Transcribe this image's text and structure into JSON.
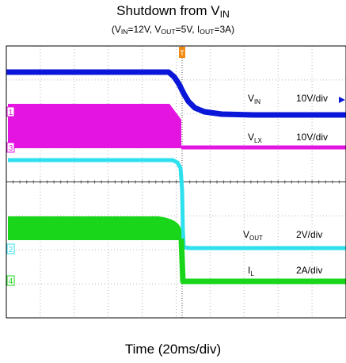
{
  "chart_data": {
    "type": "line",
    "title": "Shutdown from V",
    "title_sub": "IN",
    "subtitle": {
      "p1": "(V",
      "s1": "IN",
      "p2": "=12V, V",
      "s2": "OUT",
      "p3": "=5V, I",
      "s3": "OUT",
      "p4": "=3A)"
    },
    "xlabel": "Time (20ms/div)",
    "grid": true,
    "divisions": {
      "x": 10,
      "y": 8
    },
    "trigger_marker": "T",
    "series": [
      {
        "name": "V",
        "name_sub": "IN",
        "scale": "10V/div",
        "channel": "",
        "color": "#0a17d8"
      },
      {
        "name": "V",
        "name_sub": "LX",
        "scale": "10V/div",
        "channel": "1",
        "color": "#e414e1"
      },
      {
        "name": "V",
        "name_sub": "OUT",
        "scale": "2V/div",
        "channel": "2",
        "color": "#2ee0ee"
      },
      {
        "name": "I",
        "name_sub": "L",
        "scale": "2A/div",
        "channel": "4",
        "color": "#1ad61a"
      }
    ],
    "channel_markers": [
      "1",
      "3",
      "2",
      "4"
    ],
    "colors": {
      "grid": "#b4b4b4",
      "frame": "#000000",
      "background": "#ffffff"
    }
  }
}
